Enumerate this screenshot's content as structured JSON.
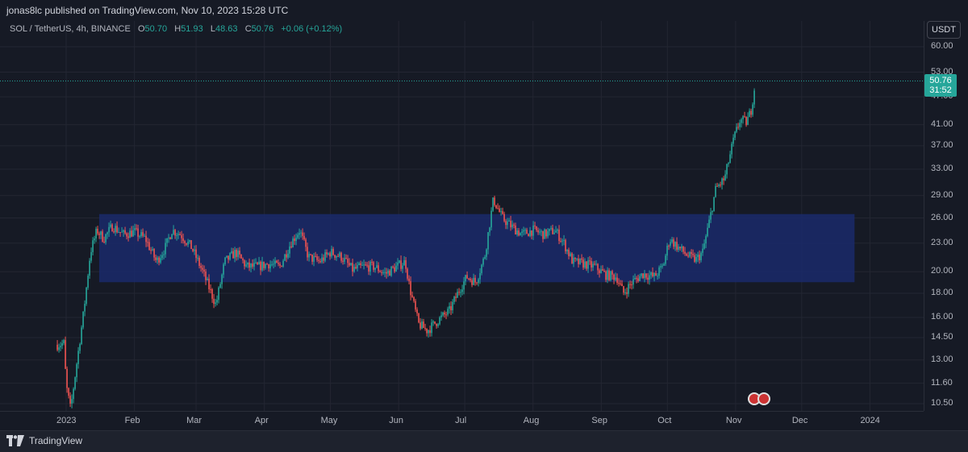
{
  "header": {
    "publisher_text": "jonas8lc published on TradingView.com, Nov 10, 2023 15:28 UTC"
  },
  "legend": {
    "symbol": "SOL / TetherUS, 4h, BINANCE",
    "o_label": "O",
    "o_value": "50.70",
    "h_label": "H",
    "h_value": "51.93",
    "l_label": "L",
    "l_value": "48.63",
    "c_label": "C",
    "c_value": "50.76",
    "change": "+0.06 (+0.12%)"
  },
  "currency_button": "USDT",
  "last_price": {
    "price": "50.76",
    "countdown": "31:52"
  },
  "footer": {
    "brand": "TradingView"
  },
  "colors": {
    "up": "#26a69a",
    "down": "#ef5350",
    "zone": "#1a2a6b",
    "background": "#161a25"
  },
  "chart_data": {
    "type": "candlestick",
    "title": "SOL / TetherUS, 4h, BINANCE",
    "y_scale": "log",
    "ylim": [
      10,
      64
    ],
    "price_ticks": [
      "60.00",
      "53.00",
      "47.00",
      "41.00",
      "37.00",
      "33.00",
      "29.00",
      "26.00",
      "23.00",
      "20.00",
      "18.00",
      "16.00",
      "14.50",
      "13.00",
      "11.60",
      "10.50"
    ],
    "time_ticks": [
      "2023",
      "Feb",
      "Mar",
      "Apr",
      "May",
      "Jun",
      "Jul",
      "Aug",
      "Sep",
      "Oct",
      "Nov",
      "Dec",
      "2024"
    ],
    "zone": {
      "x_start": "Jan 16, 2023",
      "x_end": "Dec 25, 2023",
      "y_low": 19.0,
      "y_high": 26.5
    },
    "close_path": [
      [
        "Dec 28, 2022",
        14.0
      ],
      [
        "Dec 31, 2022",
        14.1
      ],
      [
        "Jan 1, 2023",
        11.5
      ],
      [
        "Jan 3, 2023",
        10.2
      ],
      [
        "Jan 6, 2023",
        13.0
      ],
      [
        "Jan 9, 2023",
        16.5
      ],
      [
        "Jan 12, 2023",
        22.0
      ],
      [
        "Jan 15, 2023",
        24.5
      ],
      [
        "Jan 18, 2023",
        23.5
      ],
      [
        "Jan 22, 2023",
        25.0
      ],
      [
        "Jan 27, 2023",
        24.0
      ],
      [
        "Feb 1, 2023",
        24.3
      ],
      [
        "Feb 6, 2023",
        23.5
      ],
      [
        "Feb 11, 2023",
        21.0
      ],
      [
        "Feb 15, 2023",
        22.5
      ],
      [
        "Feb 18, 2023",
        24.5
      ],
      [
        "Feb 22, 2023",
        24.0
      ],
      [
        "Feb 27, 2023",
        22.5
      ],
      [
        "Mar 4, 2023",
        20.0
      ],
      [
        "Mar 10, 2023",
        17.0
      ],
      [
        "Mar 14, 2023",
        21.0
      ],
      [
        "Mar 19, 2023",
        22.0
      ],
      [
        "Mar 24, 2023",
        20.5
      ],
      [
        "Mar 29, 2023",
        20.5
      ],
      [
        "Apr 3, 2023",
        20.8
      ],
      [
        "Apr 8, 2023",
        20.5
      ],
      [
        "Apr 13, 2023",
        23.0
      ],
      [
        "Apr 17, 2023",
        24.5
      ],
      [
        "Apr 21, 2023",
        21.5
      ],
      [
        "Apr 26, 2023",
        21.0
      ],
      [
        "May 1, 2023",
        22.0
      ],
      [
        "May 6, 2023",
        21.5
      ],
      [
        "May 11, 2023",
        20.2
      ],
      [
        "May 16, 2023",
        20.5
      ],
      [
        "May 21, 2023",
        20.5
      ],
      [
        "May 26, 2023",
        19.8
      ],
      [
        "May 31, 2023",
        20.5
      ],
      [
        "Jun 4, 2023",
        21.0
      ],
      [
        "Jun 6, 2023",
        18.5
      ],
      [
        "Jun 10, 2023",
        15.5
      ],
      [
        "Jun 14, 2023",
        15.0
      ],
      [
        "Jun 19, 2023",
        15.8
      ],
      [
        "Jun 24, 2023",
        16.5
      ],
      [
        "Jun 29, 2023",
        18.5
      ],
      [
        "Jul 2, 2023",
        19.5
      ],
      [
        "Jul 6, 2023",
        19.0
      ],
      [
        "Jul 10, 2023",
        21.5
      ],
      [
        "Jul 14, 2023",
        28.5
      ],
      [
        "Jul 18, 2023",
        26.0
      ],
      [
        "Jul 22, 2023",
        25.0
      ],
      [
        "Jul 27, 2023",
        24.0
      ],
      [
        "Aug 1, 2023",
        24.5
      ],
      [
        "Aug 6, 2023",
        24.0
      ],
      [
        "Aug 11, 2023",
        24.5
      ],
      [
        "Aug 15, 2023",
        23.0
      ],
      [
        "Aug 19, 2023",
        21.0
      ],
      [
        "Aug 24, 2023",
        20.8
      ],
      [
        "Aug 29, 2023",
        20.5
      ],
      [
        "Sep 3, 2023",
        19.7
      ],
      [
        "Sep 8, 2023",
        19.5
      ],
      [
        "Sep 11, 2023",
        18.0
      ],
      [
        "Sep 15, 2023",
        19.0
      ],
      [
        "Sep 20, 2023",
        19.8
      ],
      [
        "Sep 25, 2023",
        19.5
      ],
      [
        "Sep 29, 2023",
        20.5
      ],
      [
        "Oct 2, 2023",
        23.5
      ],
      [
        "Oct 6, 2023",
        22.5
      ],
      [
        "Oct 11, 2023",
        21.5
      ],
      [
        "Oct 14, 2023",
        21.2
      ],
      [
        "Oct 17, 2023",
        22.0
      ],
      [
        "Oct 20, 2023",
        25.5
      ],
      [
        "Oct 23, 2023",
        30.0
      ],
      [
        "Oct 27, 2023",
        31.5
      ],
      [
        "Oct 31, 2023",
        38.0
      ],
      [
        "Nov 3, 2023",
        42.0
      ],
      [
        "Nov 6, 2023",
        41.5
      ],
      [
        "Nov 8, 2023",
        44.0
      ],
      [
        "Nov 10, 2023",
        50.76
      ]
    ]
  }
}
